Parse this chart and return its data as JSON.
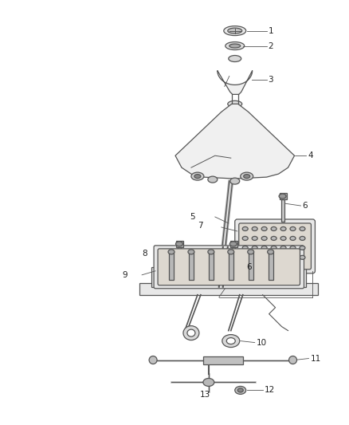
{
  "bg_color": "#ffffff",
  "line_color": "#555555",
  "fig_width": 4.38,
  "fig_height": 5.33,
  "dpi": 100
}
